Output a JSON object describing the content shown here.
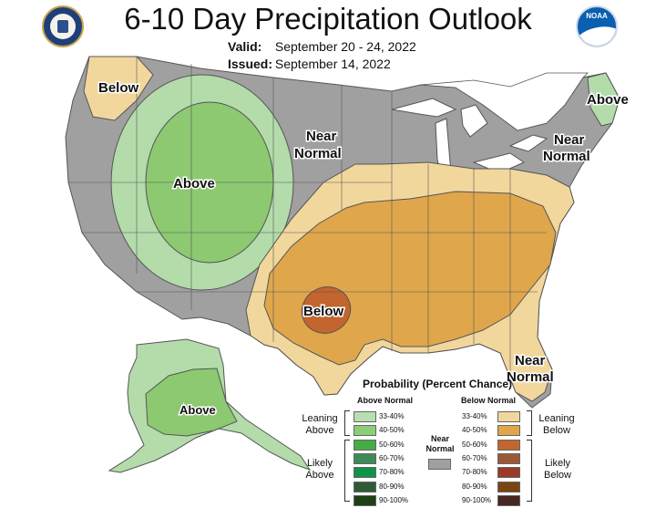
{
  "title": "6-10 Day Precipitation Outlook",
  "valid": {
    "label": "Valid:",
    "value": "September 20 - 24, 2022"
  },
  "issued": {
    "label": "Issued:",
    "value": "September 14, 2022"
  },
  "logos": {
    "left_icon": "department-of-commerce-seal",
    "right_icon": "noaa-logo",
    "noaa_text": "NOAA"
  },
  "map_labels": {
    "below_northwest": "Below",
    "above_west": "Above",
    "near_normal_central": [
      "Near",
      "Normal"
    ],
    "above_maine": "Above",
    "near_normal_northeast": [
      "Near",
      "Normal"
    ],
    "below_texas": "Below",
    "near_normal_florida": [
      "Near",
      "Normal"
    ],
    "above_alaska": "Above"
  },
  "colors": {
    "near_normal": "#a0a0a0",
    "above_33_40": "#b3dcaa",
    "above_40_50": "#8cc971",
    "below_33_40": "#f2d79d",
    "below_40_50": "#dfa64c",
    "below_50_60": "#c2652e"
  },
  "legend": {
    "title": "Probability (Percent Chance)",
    "above_header": "Above Normal",
    "below_header": "Below Normal",
    "near_label": [
      "Near",
      "Normal"
    ],
    "leaning_above": [
      "Leaning",
      "Above"
    ],
    "likely_above": [
      "Likely",
      "Above"
    ],
    "leaning_below": [
      "Leaning",
      "Below"
    ],
    "likely_below": [
      "Likely",
      "Below"
    ],
    "above_items": [
      {
        "range": "33-40%",
        "color": "#b8dfb0"
      },
      {
        "range": "40-50%",
        "color": "#8ccd7a"
      },
      {
        "range": "50-60%",
        "color": "#44ae44"
      },
      {
        "range": "60-70%",
        "color": "#3c8c58"
      },
      {
        "range": "70-80%",
        "color": "#0e9448"
      },
      {
        "range": "80-90%",
        "color": "#2f5c36"
      },
      {
        "range": "90-100%",
        "color": "#1f3f17"
      }
    ],
    "below_items": [
      {
        "range": "33-40%",
        "color": "#f2d79d"
      },
      {
        "range": "40-50%",
        "color": "#dfa64c"
      },
      {
        "range": "50-60%",
        "color": "#c2652e"
      },
      {
        "range": "60-70%",
        "color": "#9c5836"
      },
      {
        "range": "70-80%",
        "color": "#9c3a2a"
      },
      {
        "range": "80-90%",
        "color": "#7a4510"
      },
      {
        "range": "90-100%",
        "color": "#4a2620"
      }
    ],
    "near_color": "#a0a0a0"
  }
}
